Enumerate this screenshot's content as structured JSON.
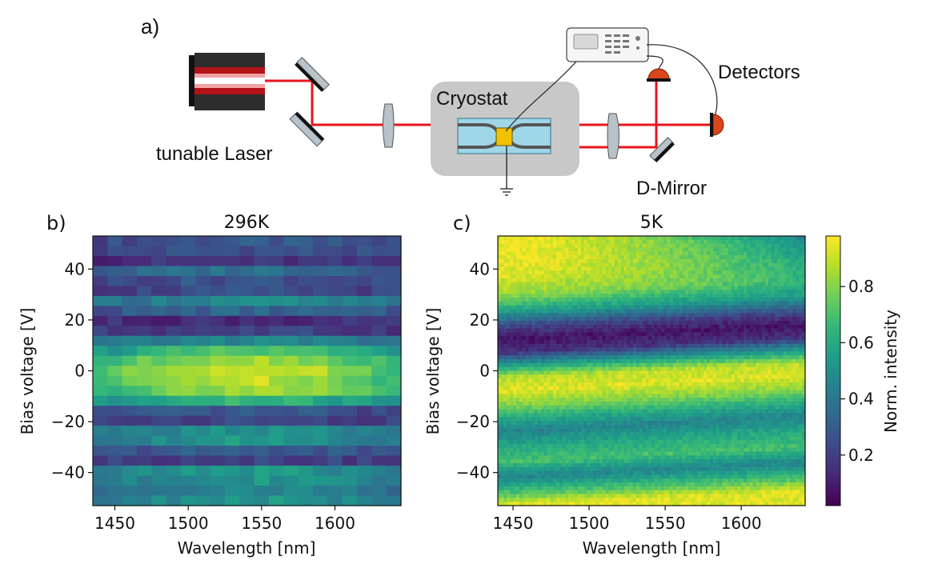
{
  "panel_a": {
    "label": "a)",
    "laser_label": "tunable Laser",
    "cryostat_label": "Cryostat",
    "detectors_label": "Detectors",
    "dmirror_label": "D-Mirror",
    "colors": {
      "beam": "#e8141c",
      "cryostat_box": "#c8c8c8",
      "chip": "#9fd6e8",
      "sample": "#f2c200",
      "laser_body": "#2d2d2d",
      "detector": "#d8461b"
    }
  },
  "colormap": {
    "name": "viridis",
    "stops": [
      "#440154",
      "#482777",
      "#3e4989",
      "#31688e",
      "#26828e",
      "#1f9e89",
      "#35b779",
      "#6ece58",
      "#b5de2b",
      "#fde725"
    ]
  },
  "chart_data": [
    {
      "type": "heatmap",
      "panel_label": "b)",
      "title": "296K",
      "xlabel": "Wavelength [nm]",
      "ylabel": "Bias voltage [V]",
      "xlim": [
        1435,
        1645
      ],
      "ylim": [
        -53,
        53
      ],
      "xticks": [
        1450,
        1500,
        1550,
        1600
      ],
      "yticks": [
        -40,
        -20,
        0,
        20,
        40
      ],
      "nx": 21,
      "ny": 27,
      "intensity_model": {
        "description": "Normalized intensity vs bias voltage; stripe profile along voltage",
        "profile_voltage": [
          -53,
          -46,
          -40,
          -34,
          -28,
          -23,
          -18,
          -14,
          -10,
          -5,
          0,
          5,
          10,
          14,
          18,
          23,
          28,
          33,
          38,
          44,
          48,
          53
        ],
        "profile_intensity": [
          0.55,
          0.45,
          0.6,
          0.1,
          0.55,
          0.5,
          0.08,
          0.4,
          0.85,
          0.9,
          0.95,
          0.85,
          0.6,
          0.3,
          0.05,
          0.3,
          0.5,
          0.1,
          0.45,
          0.1,
          0.3,
          0.25
        ],
        "peak_wavelength": 1540,
        "edge_intensity": 0.1
      }
    },
    {
      "type": "heatmap",
      "panel_label": "c)",
      "title": "5K",
      "xlabel": "Wavelength [nm]",
      "ylabel": "Bias voltage [V]",
      "xlim": [
        1440,
        1642
      ],
      "ylim": [
        -53,
        53
      ],
      "xticks": [
        1450,
        1500,
        1550,
        1600
      ],
      "yticks": [
        -40,
        -20,
        0,
        20,
        40
      ],
      "nx": 100,
      "ny": 70,
      "intensity_model": {
        "profile_voltage": [
          -53,
          -48,
          -42,
          -36,
          -30,
          -24,
          -19,
          -14,
          -8,
          -3,
          2,
          7,
          12,
          17,
          23,
          30,
          38,
          46,
          53
        ],
        "profile_intensity": [
          0.95,
          0.7,
          0.45,
          0.7,
          0.6,
          0.45,
          0.6,
          0.8,
          0.95,
          0.9,
          0.55,
          0.15,
          0.05,
          0.2,
          0.55,
          0.85,
          0.95,
          0.98,
          0.98
        ],
        "fringe_shift_at_long_wavelength": 6,
        "long_wavelength_top_intensity": 0.45
      },
      "colorbar": {
        "label": "Norm. intensity",
        "range": [
          0.02,
          0.98
        ],
        "ticks": [
          0.2,
          0.4,
          0.6,
          0.8
        ]
      }
    }
  ]
}
